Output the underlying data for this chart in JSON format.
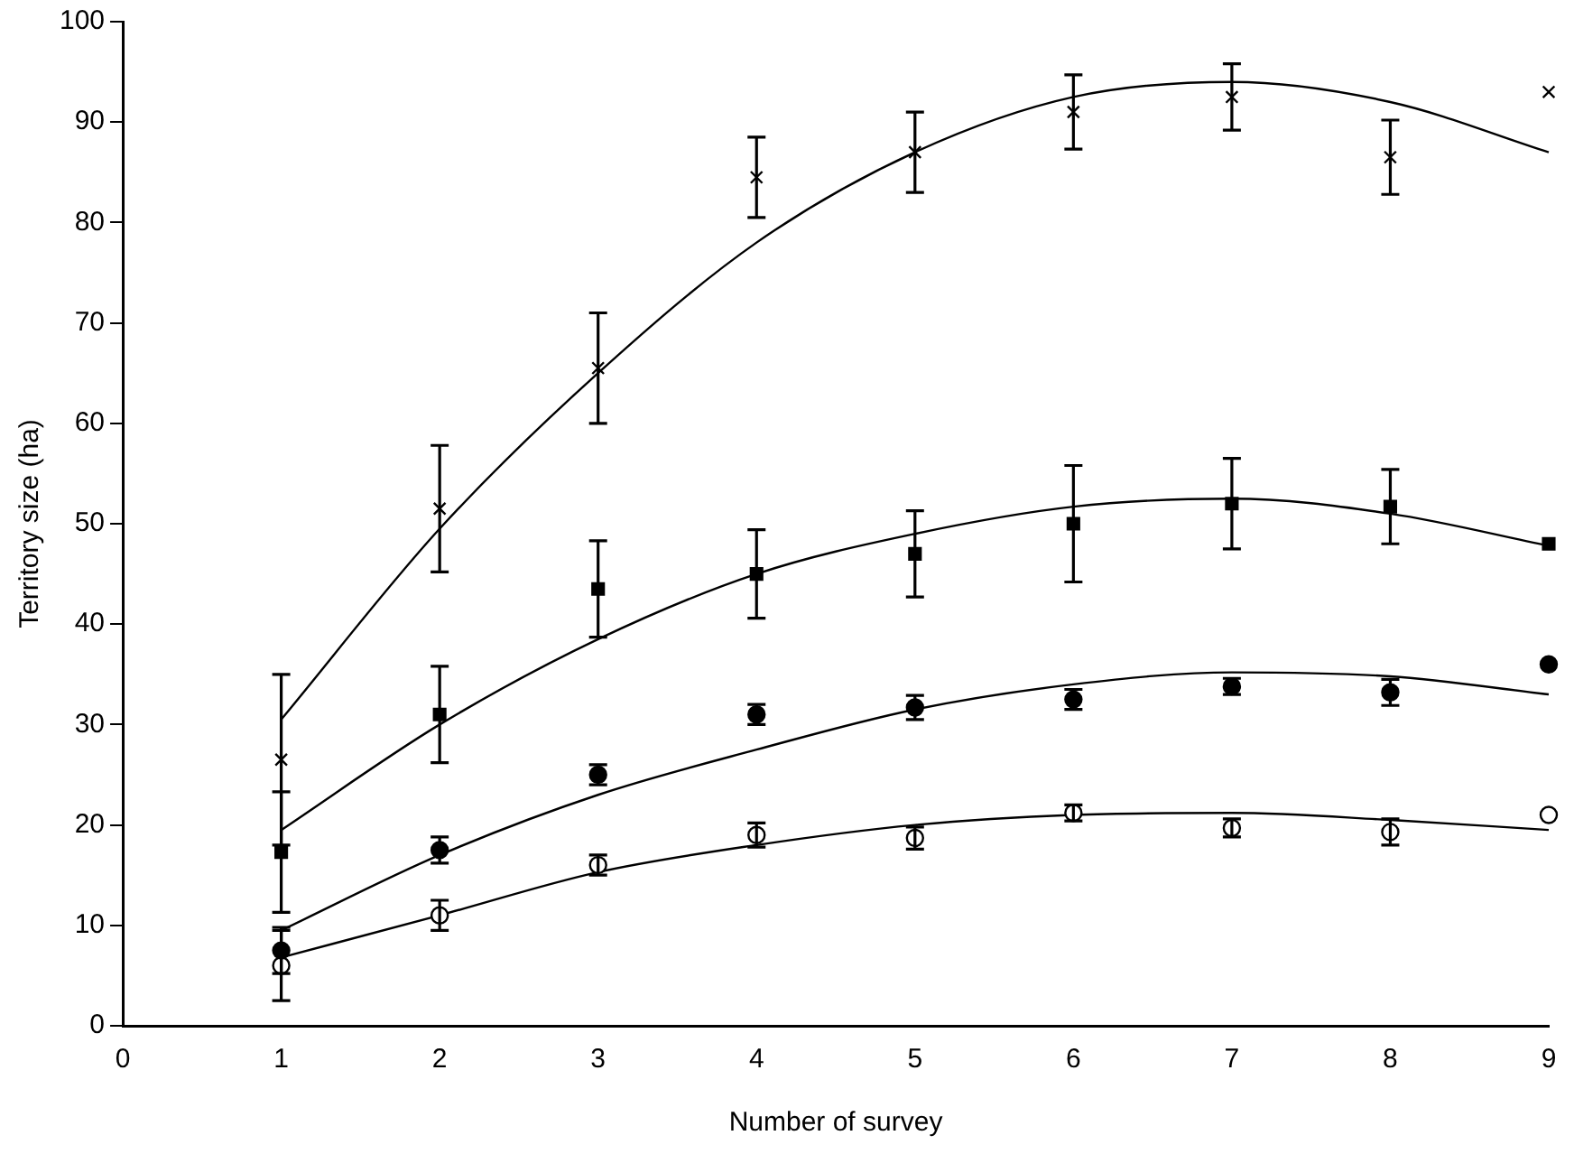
{
  "chart_data": {
    "type": "scatter",
    "xlabel": "Number of survey",
    "ylabel": "Territory size (ha)",
    "xlim": [
      0,
      9
    ],
    "xticks": [
      0,
      1,
      2,
      3,
      4,
      5,
      6,
      7,
      8,
      9
    ],
    "ylim": [
      0,
      100
    ],
    "yticks": [
      0,
      10,
      20,
      30,
      40,
      50,
      60,
      70,
      80,
      90,
      100
    ],
    "grid": false,
    "legend": false,
    "series": [
      {
        "type": "scatter",
        "marker": "cross",
        "color": "#000000",
        "x": [
          1,
          2,
          3,
          4,
          5,
          6,
          7,
          8,
          9
        ],
        "values": [
          26.5,
          51.5,
          65.5,
          84.5,
          87,
          91,
          92.5,
          86.5,
          93
        ],
        "errors": [
          8.5,
          6.3,
          5.5,
          4,
          4,
          3.7,
          3.3,
          3.7,
          null
        ]
      },
      {
        "type": "scatter",
        "marker": "square",
        "color": "#000000",
        "x": [
          1,
          2,
          3,
          4,
          5,
          6,
          7,
          8,
          9
        ],
        "values": [
          17.3,
          31,
          43.5,
          45,
          47,
          50,
          52,
          51.7,
          48
        ],
        "errors": [
          6,
          4.8,
          4.8,
          4.4,
          4.3,
          5.8,
          4.5,
          3.7,
          null
        ]
      },
      {
        "type": "scatter",
        "marker": "circle",
        "color": "#000000",
        "x": [
          1,
          2,
          3,
          4,
          5,
          6,
          7,
          8,
          9
        ],
        "values": [
          7.5,
          17.5,
          25,
          31,
          31.7,
          32.5,
          33.8,
          33.2,
          36
        ],
        "errors": [
          2.3,
          1.3,
          1,
          1,
          1.2,
          1,
          0.8,
          1.3,
          null
        ]
      },
      {
        "type": "scatter",
        "marker": "circle",
        "color": "#ffffff",
        "x": [
          1,
          2,
          3,
          4,
          5,
          6,
          7,
          8,
          9
        ],
        "values": [
          6,
          11,
          16,
          19,
          18.7,
          21.2,
          19.7,
          19.3,
          21
        ],
        "errors": [
          3.5,
          1.5,
          1,
          1.2,
          1.1,
          0.8,
          0.9,
          1.3,
          null
        ]
      },
      {
        "type": "line",
        "marker": "none",
        "color": "#000000",
        "x": [
          1,
          2,
          3,
          4,
          5,
          6,
          7,
          8,
          9
        ],
        "values": [
          30.5,
          49.5,
          65,
          78,
          87,
          92.5,
          94,
          92,
          87
        ]
      },
      {
        "type": "line",
        "marker": "none",
        "color": "#000000",
        "x": [
          1,
          2,
          3,
          4,
          5,
          6,
          7,
          8,
          9
        ],
        "values": [
          19.5,
          30,
          38.5,
          45,
          49,
          51.7,
          52.5,
          51,
          47.8
        ]
      },
      {
        "type": "line",
        "marker": "none",
        "color": "#000000",
        "x": [
          1,
          2,
          3,
          4,
          5,
          6,
          7,
          8,
          9
        ],
        "values": [
          9.5,
          17,
          23,
          27.5,
          31.5,
          34,
          35.2,
          34.8,
          33
        ]
      },
      {
        "type": "line",
        "marker": "none",
        "color": "#000000",
        "x": [
          1,
          2,
          3,
          4,
          5,
          6,
          7,
          8,
          9
        ],
        "values": [
          6.8,
          11,
          15.3,
          18,
          20,
          21,
          21.2,
          20.5,
          19.5
        ]
      }
    ]
  }
}
